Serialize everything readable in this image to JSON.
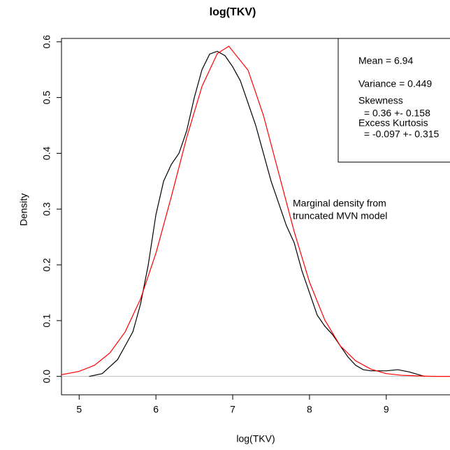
{
  "chart_data": {
    "type": "line",
    "title": "log(TKV)",
    "x_label": "log(TKV)",
    "y_label": "Density",
    "xlim": [
      4.77,
      9.83
    ],
    "ylim": [
      -0.033,
      0.606
    ],
    "xticks": [
      5,
      6,
      7,
      8,
      9
    ],
    "yticks": [
      {
        "value": 0,
        "label": "0.0"
      },
      0.1,
      0.2,
      0.3,
      0.4,
      0.5,
      0.6
    ],
    "series": [
      {
        "color": "#000000",
        "x": [
          5.13,
          5.3,
          5.5,
          5.7,
          5.8,
          5.9,
          6.0,
          6.1,
          6.2,
          6.3,
          6.4,
          6.5,
          6.6,
          6.7,
          6.8,
          6.9,
          7.0,
          7.1,
          7.2,
          7.3,
          7.4,
          7.5,
          7.6,
          7.7,
          7.8,
          7.9,
          8.0,
          8.1,
          8.2,
          8.3,
          8.4,
          8.5,
          8.6,
          8.7,
          8.8,
          9.0,
          9.15,
          9.3,
          9.5
        ],
        "values": [
          0.0,
          0.005,
          0.03,
          0.08,
          0.13,
          0.2,
          0.29,
          0.35,
          0.38,
          0.4,
          0.44,
          0.5,
          0.55,
          0.578,
          0.583,
          0.575,
          0.555,
          0.53,
          0.49,
          0.45,
          0.4,
          0.35,
          0.31,
          0.27,
          0.24,
          0.19,
          0.15,
          0.11,
          0.09,
          0.075,
          0.055,
          0.035,
          0.02,
          0.012,
          0.01,
          0.01,
          0.012,
          0.008,
          0.0
        ]
      },
      {
        "color": "#ff0000",
        "x": [
          4.77,
          5.0,
          5.2,
          5.4,
          5.6,
          5.8,
          6.0,
          6.2,
          6.4,
          6.6,
          6.8,
          6.95,
          7.2,
          7.4,
          7.6,
          7.8,
          8.0,
          8.2,
          8.4,
          8.6,
          8.8,
          9.0,
          9.2,
          9.4,
          9.6,
          9.83
        ],
        "values": [
          0.003,
          0.009,
          0.02,
          0.042,
          0.08,
          0.139,
          0.221,
          0.322,
          0.428,
          0.52,
          0.579,
          0.592,
          0.549,
          0.468,
          0.364,
          0.26,
          0.169,
          0.101,
          0.055,
          0.028,
          0.013,
          0.005,
          0.002,
          0.001,
          0.0,
          0.0
        ]
      }
    ],
    "stats_box": [
      "Mean = 6.94",
      "Variance = 0.449",
      "Skewness",
      " = 0.36 +- 0.158",
      "Excess Kurtosis",
      " = -0.097 +- 0.315"
    ],
    "annotation": {
      "color": "#ff0000",
      "lines": [
        "Marginal density from",
        "truncated MVN model"
      ]
    }
  }
}
